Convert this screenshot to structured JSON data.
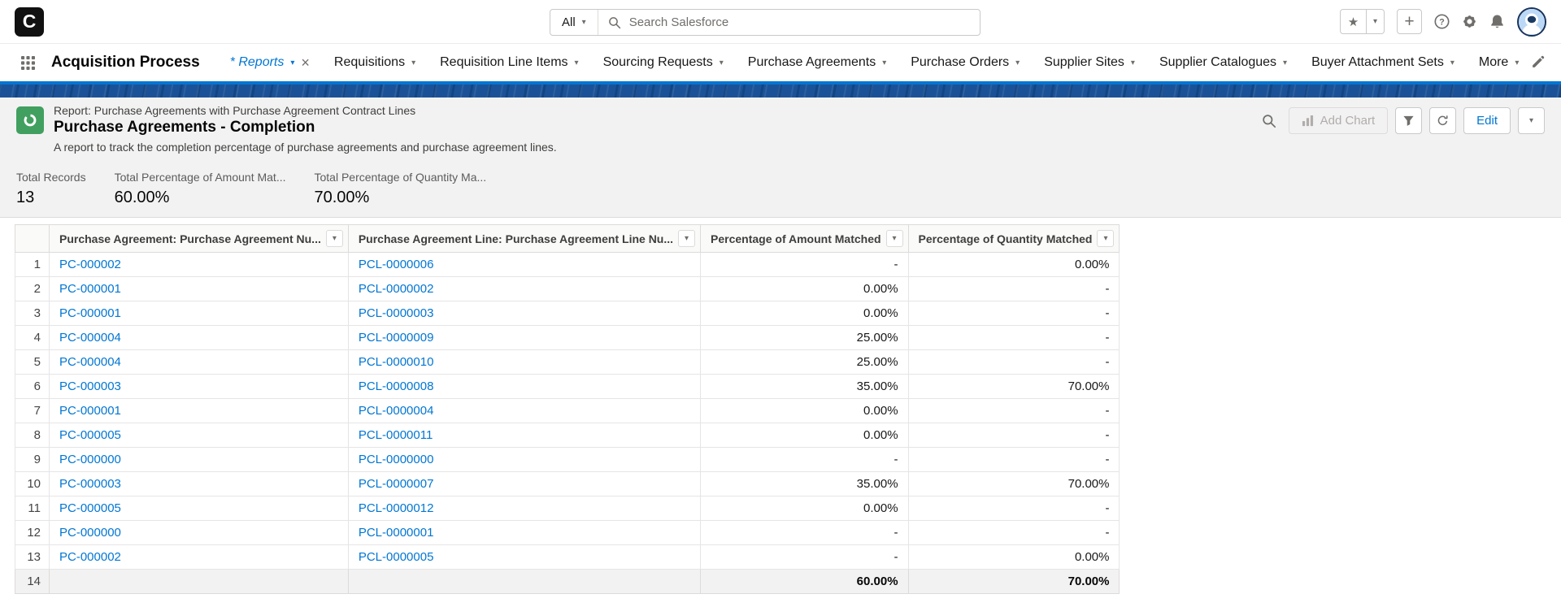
{
  "colors": {
    "accent_blue": "#0176d3",
    "brand_band_blue": "#1b5297",
    "link_blue": "#0176d3",
    "report_icon_green": "#41a05f",
    "panel_gray": "#f3f2f2"
  },
  "global_header": {
    "logo_letter": "C",
    "search_scope": "All",
    "search_placeholder": "Search Salesforce"
  },
  "nav": {
    "app_name": "Acquisition Process",
    "tabs": [
      {
        "label": "* Reports",
        "active": true,
        "closable": true
      },
      {
        "label": "Requisitions"
      },
      {
        "label": "Requisition Line Items"
      },
      {
        "label": "Sourcing Requests"
      },
      {
        "label": "Purchase Agreements"
      },
      {
        "label": "Purchase Orders"
      },
      {
        "label": "Supplier Sites"
      },
      {
        "label": "Supplier Catalogues"
      },
      {
        "label": "Buyer Attachment Sets"
      },
      {
        "label": "More"
      }
    ]
  },
  "report_header": {
    "type_label": "Report: Purchase Agreements with Purchase Agreement Contract Lines",
    "title": "Purchase Agreements - Completion",
    "description": "A report to track the completion percentage of purchase agreements and purchase agreement lines.",
    "buttons": {
      "add_chart": "Add Chart",
      "edit": "Edit"
    }
  },
  "summary": {
    "metrics": [
      {
        "label": "Total Records",
        "value": "13"
      },
      {
        "label": "Total Percentage of Amount Mat...",
        "value": "60.00%"
      },
      {
        "label": "Total Percentage of Quantity Ma...",
        "value": "70.00%"
      }
    ]
  },
  "table": {
    "headers": [
      "Purchase Agreement: Purchase Agreement Nu...",
      "Purchase Agreement Line: Purchase Agreement Line Nu...",
      "Percentage of Amount Matched",
      "Percentage of Quantity Matched"
    ],
    "rows": [
      {
        "num": "1",
        "agreement": "PC-000002",
        "line": "PCL-0000006",
        "amount": "-",
        "quantity": "0.00%"
      },
      {
        "num": "2",
        "agreement": "PC-000001",
        "line": "PCL-0000002",
        "amount": "0.00%",
        "quantity": "-"
      },
      {
        "num": "3",
        "agreement": "PC-000001",
        "line": "PCL-0000003",
        "amount": "0.00%",
        "quantity": "-"
      },
      {
        "num": "4",
        "agreement": "PC-000004",
        "line": "PCL-0000009",
        "amount": "25.00%",
        "quantity": "-"
      },
      {
        "num": "5",
        "agreement": "PC-000004",
        "line": "PCL-0000010",
        "amount": "25.00%",
        "quantity": "-"
      },
      {
        "num": "6",
        "agreement": "PC-000003",
        "line": "PCL-0000008",
        "amount": "35.00%",
        "quantity": "70.00%"
      },
      {
        "num": "7",
        "agreement": "PC-000001",
        "line": "PCL-0000004",
        "amount": "0.00%",
        "quantity": "-"
      },
      {
        "num": "8",
        "agreement": "PC-000005",
        "line": "PCL-0000011",
        "amount": "0.00%",
        "quantity": "-"
      },
      {
        "num": "9",
        "agreement": "PC-000000",
        "line": "PCL-0000000",
        "amount": "-",
        "quantity": "-"
      },
      {
        "num": "10",
        "agreement": "PC-000003",
        "line": "PCL-0000007",
        "amount": "35.00%",
        "quantity": "70.00%"
      },
      {
        "num": "11",
        "agreement": "PC-000005",
        "line": "PCL-0000012",
        "amount": "0.00%",
        "quantity": "-"
      },
      {
        "num": "12",
        "agreement": "PC-000000",
        "line": "PCL-0000001",
        "amount": "-",
        "quantity": "-"
      },
      {
        "num": "13",
        "agreement": "PC-000002",
        "line": "PCL-0000005",
        "amount": "-",
        "quantity": "0.00%"
      }
    ],
    "totals": {
      "num": "14",
      "amount": "60.00%",
      "quantity": "70.00%"
    }
  }
}
